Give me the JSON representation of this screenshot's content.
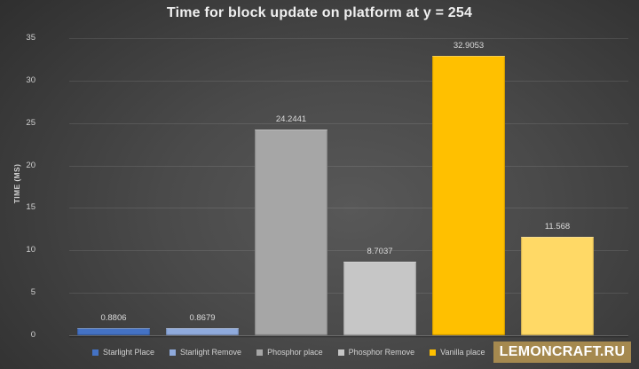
{
  "header": {
    "title": "Time for block update on platform at y = 254"
  },
  "watermark": {
    "text": "LEMONCRAFT.RU",
    "bg_color": "#a5894f"
  },
  "axis": {
    "ylabel": "TIME (MS)"
  },
  "chart_data": {
    "type": "bar",
    "title": "Time for block update on platform at y = 254",
    "xlabel": "",
    "ylabel": "TIME (MS)",
    "ylim": [
      0,
      35
    ],
    "yticks": [
      0,
      5,
      10,
      15,
      20,
      25,
      30,
      35
    ],
    "grid": true,
    "legend_position": "bottom",
    "background": "dark-radial-gradient",
    "categories": [
      "Starlight Place",
      "Starlight Remove",
      "Phosphor place",
      "Phosphor Remove",
      "Vanilla place",
      ""
    ],
    "series": [
      {
        "name": "Starlight Place",
        "value": 0.8806,
        "label": "0.8806",
        "color": "#4472C4"
      },
      {
        "name": "Starlight Remove",
        "value": 0.8679,
        "label": "0.8679",
        "color": "#8FAADC"
      },
      {
        "name": "Phosphor place",
        "value": 24.2441,
        "label": "24.2441",
        "color": "#A6A6A6"
      },
      {
        "name": "Phosphor Remove",
        "value": 8.7037,
        "label": "8.7037",
        "color": "#C6C6C6"
      },
      {
        "name": "Vanilla place",
        "value": 32.9053,
        "label": "32.9053",
        "color": "#FFC000"
      },
      {
        "name": "",
        "value": 11.568,
        "label": "11.568",
        "color": "#FFD966"
      }
    ],
    "legend": {
      "items": [
        {
          "label": "Starlight Place",
          "color": "#4472C4"
        },
        {
          "label": "Starlight Remove",
          "color": "#8FAADC"
        },
        {
          "label": "Phosphor place",
          "color": "#A6A6A6"
        },
        {
          "label": "Phosphor Remove",
          "color": "#C6C6C6"
        },
        {
          "label": "Vanilla place",
          "color": "#FFC000"
        },
        {
          "label": "",
          "color": "#FFD966"
        }
      ]
    }
  }
}
